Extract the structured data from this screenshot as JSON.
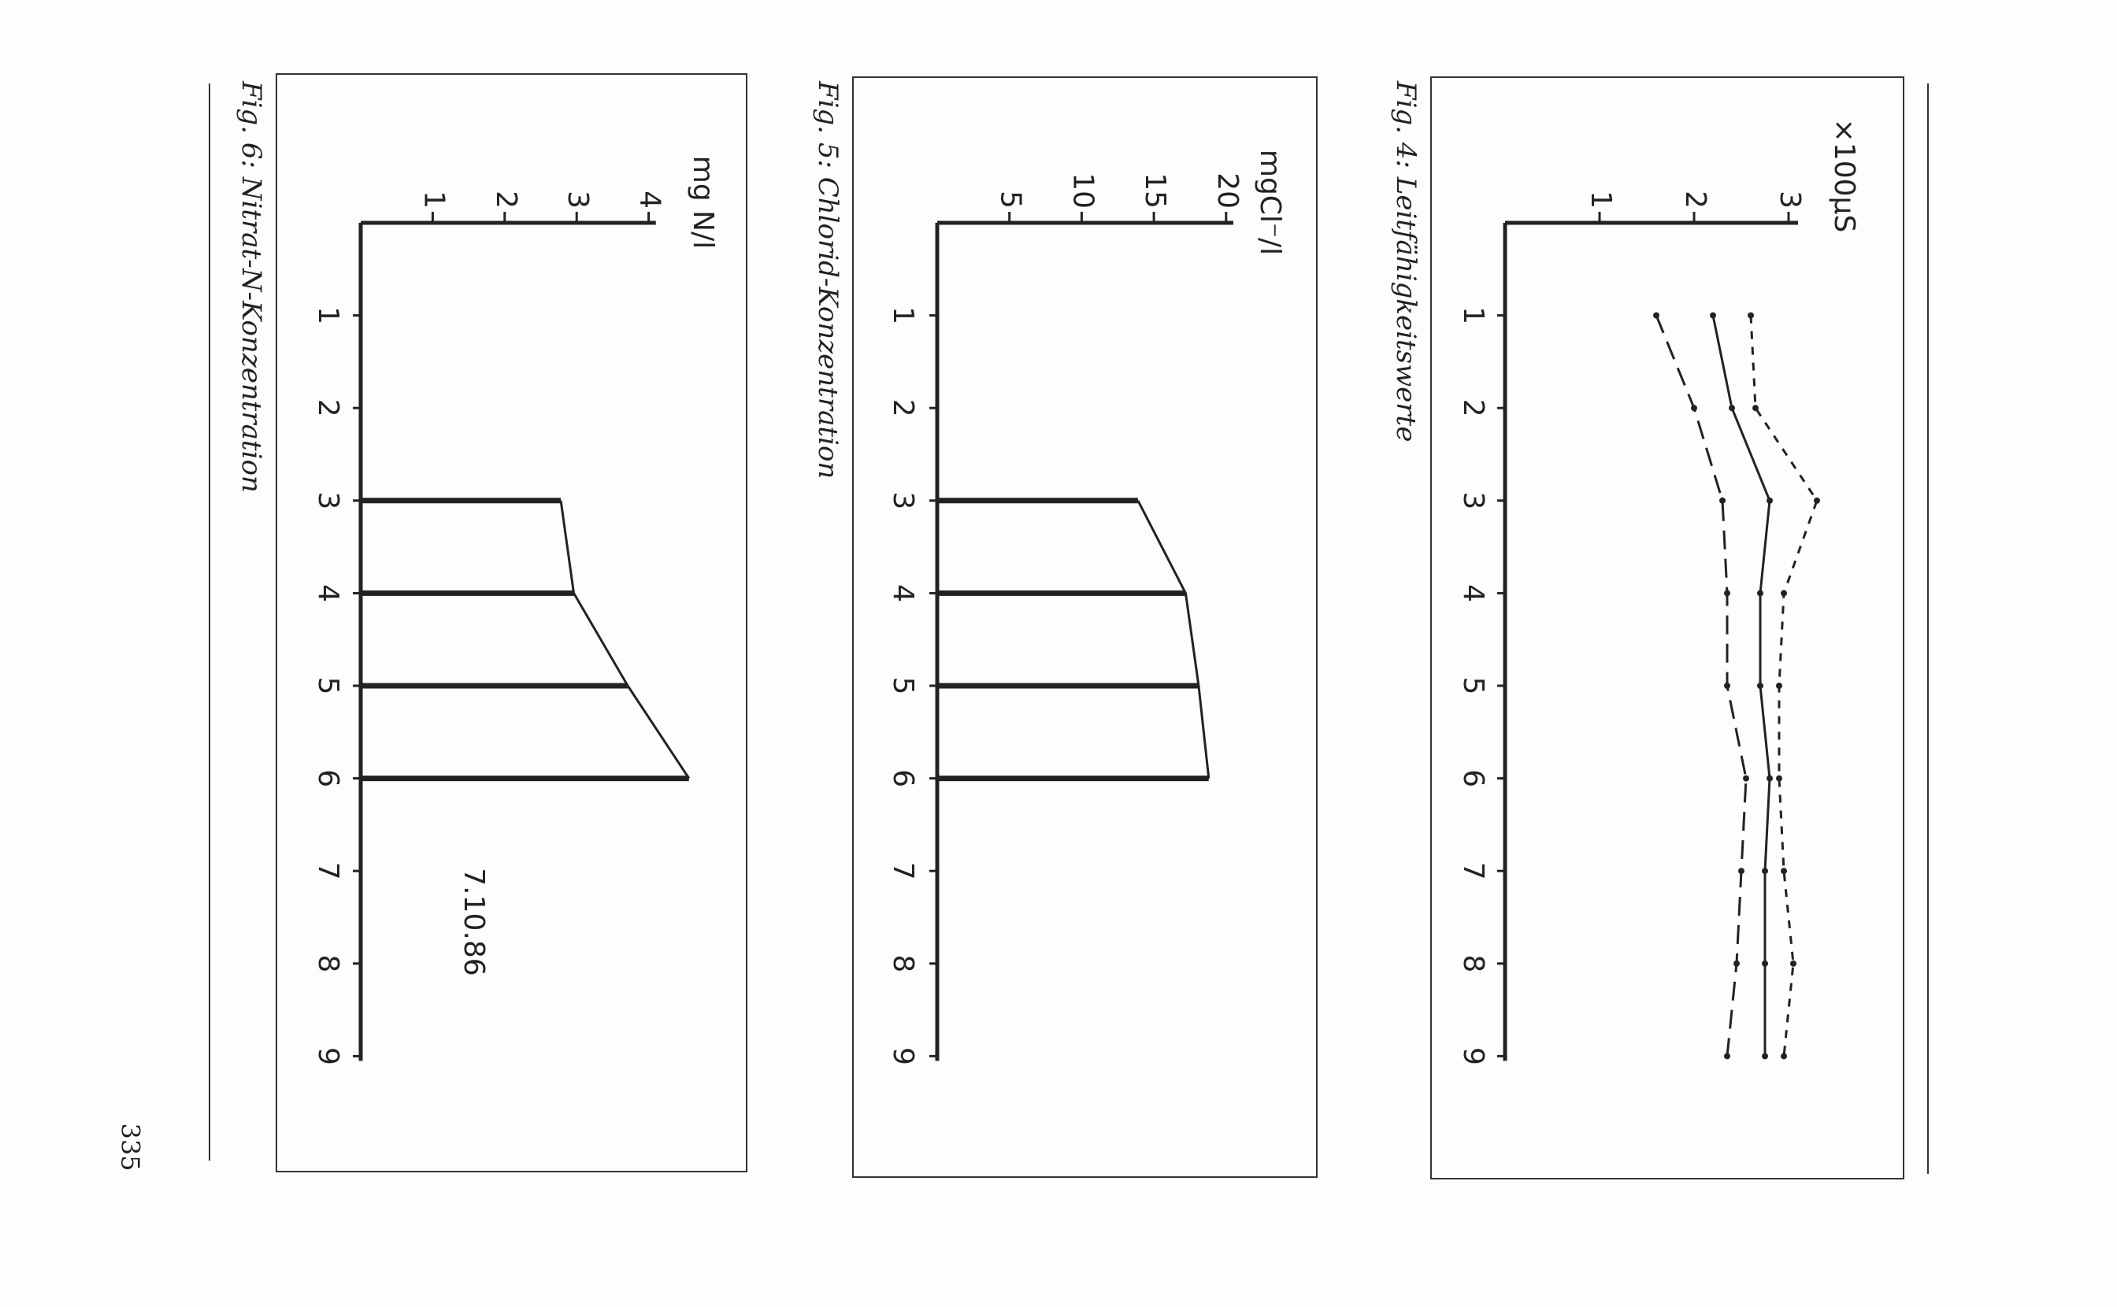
{
  "chart_data": [
    {
      "type": "line",
      "caption": "Fig. 4: Leitfähigkeitswerte",
      "y_label": "×100µS",
      "categories": [
        "1",
        "2",
        "3",
        "4",
        "5",
        "6",
        "7",
        "8",
        "9"
      ],
      "ylim": [
        0,
        3.1
      ],
      "yticks": [
        1,
        2,
        3
      ],
      "color": "#222",
      "series": [
        {
          "dash": "short",
          "values": [
            2.6,
            2.65,
            3.3,
            2.95,
            2.9,
            2.9,
            2.95,
            3.05,
            2.95
          ]
        },
        {
          "dash": "solid",
          "values": [
            2.2,
            2.4,
            2.8,
            2.7,
            2.7,
            2.8,
            2.75,
            2.75,
            2.75
          ]
        },
        {
          "dash": "long",
          "values": [
            1.6,
            2.0,
            2.3,
            2.35,
            2.35,
            2.55,
            2.5,
            2.45,
            2.35
          ]
        }
      ]
    },
    {
      "type": "bar",
      "caption": "Fig. 5: Chlorid-Konzentration",
      "y_label": "mgCl⁻/l",
      "categories": [
        "1",
        "2",
        "3",
        "4",
        "5",
        "6",
        "7",
        "8",
        "9"
      ],
      "ylim": [
        0,
        20.5
      ],
      "yticks": [
        5,
        10,
        15,
        20
      ],
      "color": "#222",
      "values": [
        null,
        null,
        13.9,
        17.2,
        18.1,
        18.8,
        null,
        null,
        null
      ]
    },
    {
      "type": "bar",
      "caption": "Fig. 6: Nitrat-N-Konzentration",
      "y_label": "mg N/l",
      "annotation": "7.10.86",
      "categories": [
        "1",
        "2",
        "3",
        "4",
        "5",
        "6",
        "7",
        "8",
        "9"
      ],
      "ylim": [
        0,
        4.1
      ],
      "yticks": [
        1,
        2,
        3,
        4
      ],
      "color": "#222",
      "values": [
        null,
        null,
        2.78,
        2.96,
        3.71,
        4.56,
        null,
        null,
        null
      ]
    }
  ],
  "page_number": "335"
}
